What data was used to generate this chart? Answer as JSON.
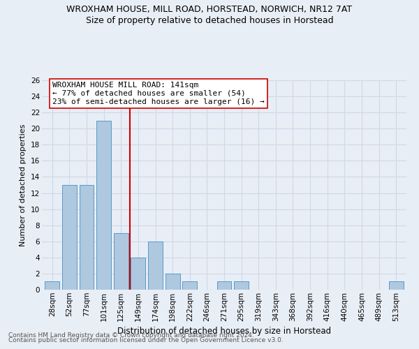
{
  "title": "WROXHAM HOUSE, MILL ROAD, HORSTEAD, NORWICH, NR12 7AT",
  "subtitle": "Size of property relative to detached houses in Horstead",
  "xlabel": "Distribution of detached houses by size in Horstead",
  "ylabel": "Number of detached properties",
  "bar_labels": [
    "28sqm",
    "52sqm",
    "77sqm",
    "101sqm",
    "125sqm",
    "149sqm",
    "174sqm",
    "198sqm",
    "222sqm",
    "246sqm",
    "271sqm",
    "295sqm",
    "319sqm",
    "343sqm",
    "368sqm",
    "392sqm",
    "416sqm",
    "440sqm",
    "465sqm",
    "489sqm",
    "513sqm"
  ],
  "bar_values": [
    1,
    13,
    13,
    21,
    7,
    4,
    6,
    2,
    1,
    0,
    1,
    1,
    0,
    0,
    0,
    0,
    0,
    0,
    0,
    0,
    1
  ],
  "bar_color": "#aec8e0",
  "bar_edge_color": "#5a9ac8",
  "grid_color": "#d0d8e8",
  "background_color": "#e8eef5",
  "vline_x": 4.5,
  "vline_color": "#cc0000",
  "annotation_text": "WROXHAM HOUSE MILL ROAD: 141sqm\n← 77% of detached houses are smaller (54)\n23% of semi-detached houses are larger (16) →",
  "annotation_box_color": "#ffffff",
  "annotation_box_edge": "#cc0000",
  "ylim": [
    0,
    26
  ],
  "yticks": [
    0,
    2,
    4,
    6,
    8,
    10,
    12,
    14,
    16,
    18,
    20,
    22,
    24,
    26
  ],
  "footer1": "Contains HM Land Registry data © Crown copyright and database right 2024.",
  "footer2": "Contains public sector information licensed under the Open Government Licence v3.0.",
  "title_fontsize": 9,
  "subtitle_fontsize": 9,
  "xlabel_fontsize": 8.5,
  "ylabel_fontsize": 8,
  "tick_fontsize": 7.5,
  "annotation_fontsize": 8,
  "footer_fontsize": 6.5
}
